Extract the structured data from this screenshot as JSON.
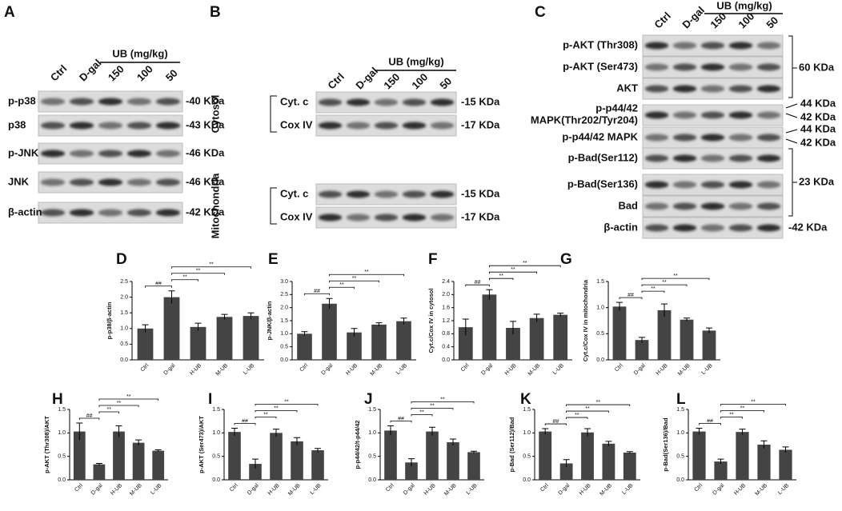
{
  "blots": [
    {
      "panel": "A",
      "group": "UB (mg/kg)",
      "lanes": [
        "Ctrl",
        "D-gal",
        "150",
        "100",
        "50"
      ],
      "rows": [
        {
          "label": "p-p38",
          "size": "-40 KDa"
        },
        {
          "label": "p38",
          "size": "-43 KDa"
        },
        {
          "label": "p-JNK",
          "size": "-46 KDa"
        },
        {
          "label": "JNK",
          "size": "-46 KDa"
        },
        {
          "label": "β-actin",
          "size": "-42 KDa"
        }
      ]
    },
    {
      "panel": "B",
      "group": "UB (mg/kg)",
      "lanes": [
        "Ctrl",
        "D-gal",
        "150",
        "100",
        "50"
      ],
      "sections": [
        {
          "name": "Cytosol",
          "rows": [
            {
              "label": "Cyt. c",
              "size": "-15 KDa"
            },
            {
              "label": "Cox IV",
              "size": "-17 KDa"
            }
          ]
        },
        {
          "name": "Mitochondria",
          "rows": [
            {
              "label": "Cyt. c",
              "size": "-15 KDa"
            },
            {
              "label": "Cox IV",
              "size": "-17 KDa"
            }
          ]
        }
      ]
    },
    {
      "panel": "C",
      "group": "UB (mg/kg)",
      "lanes": [
        "Ctrl",
        "D-gal",
        "150",
        "100",
        "50"
      ],
      "rows": [
        {
          "label": "p-AKT (Thr308)"
        },
        {
          "label": "p-AKT (Ser473)"
        },
        {
          "label": "AKT"
        },
        {
          "label": "p-p44/42",
          "label2": "MAPK(Thr202/Tyr204)"
        },
        {
          "label": "p-p44/42 MAPK"
        },
        {
          "label": "p-Bad(Ser112)"
        },
        {
          "label": "p-Bad(Ser136)"
        },
        {
          "label": "Bad"
        },
        {
          "label": "β-actin"
        }
      ],
      "sizes": [
        "60 KDa",
        "44 KDa",
        "42 KDa",
        "44 KDa",
        "42 KDa",
        "23 KDa",
        "-42 KDa"
      ]
    }
  ],
  "chart_data": [
    {
      "type": "bar",
      "panel": "D",
      "y_label": "p-p38/β-actin",
      "categories": [
        "Ctrl",
        "D-gal",
        "H-UB",
        "M-UB",
        "L-UB"
      ],
      "values": [
        1.0,
        2.0,
        1.05,
        1.37,
        1.4
      ],
      "errors": [
        0.12,
        0.2,
        0.12,
        0.08,
        0.1
      ],
      "color": "#444444",
      "ylim": [
        0,
        2.5
      ],
      "yticks": [
        {
          "value": 0,
          "label": "0.0"
        },
        0.5,
        {
          "value": 1,
          "label": "1.0"
        },
        1.5,
        {
          "value": 2,
          "label": "2.0"
        },
        2.5
      ],
      "annotations": [
        "##",
        "**",
        "**",
        "**"
      ]
    },
    {
      "type": "bar",
      "panel": "E",
      "y_label": "p-JNK/β-actin",
      "categories": [
        "Ctrl",
        "D-gal",
        "H-UB",
        "M-UB",
        "L-UB"
      ],
      "values": [
        1.0,
        2.15,
        1.05,
        1.35,
        1.48
      ],
      "errors": [
        0.08,
        0.2,
        0.15,
        0.07,
        0.12
      ],
      "color": "#444444",
      "ylim": [
        0,
        3
      ],
      "yticks": [
        {
          "value": 0,
          "label": "0.0"
        },
        0.5,
        {
          "value": 1,
          "label": "1.0"
        },
        1.5,
        {
          "value": 2,
          "label": "2.0"
        },
        2.5,
        {
          "value": 3,
          "label": "3.0"
        }
      ],
      "annotations": [
        "##",
        "**",
        "**",
        "**"
      ]
    },
    {
      "type": "bar",
      "panel": "F",
      "y_label": "Cyt.c/Cox IV in cytosol",
      "categories": [
        "Ctrl",
        "D-gal",
        "H-UB",
        "M-UB",
        "L-UB"
      ],
      "values": [
        1.0,
        2.0,
        0.98,
        1.28,
        1.38
      ],
      "errors": [
        0.25,
        0.15,
        0.2,
        0.12,
        0.05
      ],
      "color": "#444444",
      "ylim": [
        0,
        2.4
      ],
      "yticks": [
        {
          "value": 0,
          "label": "0.0"
        },
        0.4,
        0.8,
        1.2,
        1.6,
        {
          "value": 2,
          "label": "2.0"
        },
        2.4
      ],
      "annotations": [
        "##",
        "**",
        "**",
        "**"
      ]
    },
    {
      "type": "bar",
      "panel": "G",
      "y_label": "Cyt.c/Cox IV in mitochondria",
      "categories": [
        "Ctrl",
        "D-gal",
        "H-UB",
        "M-UB",
        "L-UB"
      ],
      "values": [
        1.02,
        0.38,
        0.95,
        0.77,
        0.56
      ],
      "errors": [
        0.08,
        0.05,
        0.12,
        0.03,
        0.05
      ],
      "color": "#444444",
      "ylim": [
        0,
        1.5
      ],
      "yticks": [
        {
          "value": 0,
          "label": "0.0"
        },
        0.5,
        {
          "value": 1,
          "label": "1.0"
        },
        1.5
      ],
      "annotations": [
        "##",
        "**",
        "**",
        "**"
      ]
    },
    {
      "type": "bar",
      "panel": "H",
      "y_label": "p-AKT (Thr308)/AKT",
      "categories": [
        "Ctrl",
        "D-gal",
        "H-UB",
        "M-UB",
        "L-UB"
      ],
      "values": [
        1.03,
        0.33,
        1.03,
        0.79,
        0.62
      ],
      "errors": [
        0.18,
        0.02,
        0.12,
        0.06,
        0.02
      ],
      "color": "#444444",
      "ylim": [
        0,
        1.5
      ],
      "yticks": [
        {
          "value": 0,
          "label": "0.0"
        },
        0.5,
        {
          "value": 1,
          "label": "1.0"
        },
        1.5
      ],
      "annotations": [
        "##",
        "**",
        "**",
        "**"
      ]
    },
    {
      "type": "bar",
      "panel": "I",
      "y_label": "p-AKT (Ser473)/AKT",
      "categories": [
        "Ctrl",
        "D-gal",
        "H-UB",
        "M-UB",
        "L-UB"
      ],
      "values": [
        1.02,
        0.34,
        1.0,
        0.82,
        0.63
      ],
      "errors": [
        0.08,
        0.1,
        0.08,
        0.08,
        0.04
      ],
      "color": "#444444",
      "ylim": [
        0,
        1.5
      ],
      "yticks": [
        {
          "value": 0,
          "label": "0.0"
        },
        0.5,
        {
          "value": 1,
          "label": "1.0"
        },
        1.5
      ],
      "annotations": [
        "##",
        "**",
        "**",
        "**"
      ]
    },
    {
      "type": "bar",
      "panel": "J",
      "y_label": "p-p44/42/t-p44/42",
      "categories": [
        "Ctrl",
        "D-gal",
        "H-UB",
        "M-UB",
        "L-UB"
      ],
      "values": [
        1.05,
        0.37,
        1.03,
        0.8,
        0.59
      ],
      "errors": [
        0.1,
        0.08,
        0.09,
        0.07,
        0.02
      ],
      "color": "#444444",
      "ylim": [
        0,
        1.5
      ],
      "yticks": [
        {
          "value": 0,
          "label": "0.0"
        },
        0.5,
        {
          "value": 1,
          "label": "1.0"
        },
        1.5
      ],
      "annotations": [
        "##",
        "**",
        "**",
        "**"
      ]
    },
    {
      "type": "bar",
      "panel": "K",
      "y_label": "p-Bad (Ser112)/Bad",
      "categories": [
        "Ctrl",
        "D-gal",
        "H-UB",
        "M-UB",
        "L-UB"
      ],
      "values": [
        1.03,
        0.35,
        1.01,
        0.77,
        0.58
      ],
      "errors": [
        0.06,
        0.08,
        0.08,
        0.05,
        0.02
      ],
      "color": "#444444",
      "ylim": [
        0,
        1.5
      ],
      "yticks": [
        {
          "value": 0,
          "label": "0.0"
        },
        0.5,
        {
          "value": 1,
          "label": "1.0"
        },
        1.5
      ],
      "annotations": [
        "##",
        "**",
        "**",
        "**"
      ]
    },
    {
      "type": "bar",
      "panel": "L",
      "y_label": "p-Bad(Ser136)/Bad",
      "categories": [
        "Ctrl",
        "D-gal",
        "H-UB",
        "M-UB",
        "L-UB"
      ],
      "values": [
        1.03,
        0.39,
        1.02,
        0.75,
        0.64
      ],
      "errors": [
        0.07,
        0.05,
        0.06,
        0.08,
        0.06
      ],
      "color": "#444444",
      "ylim": [
        0,
        1.5
      ],
      "yticks": [
        {
          "value": 0,
          "label": "0.0"
        },
        0.5,
        {
          "value": 1,
          "label": "1.0"
        },
        1.5
      ],
      "annotations": [
        "##",
        "**",
        "**",
        "**"
      ]
    }
  ]
}
